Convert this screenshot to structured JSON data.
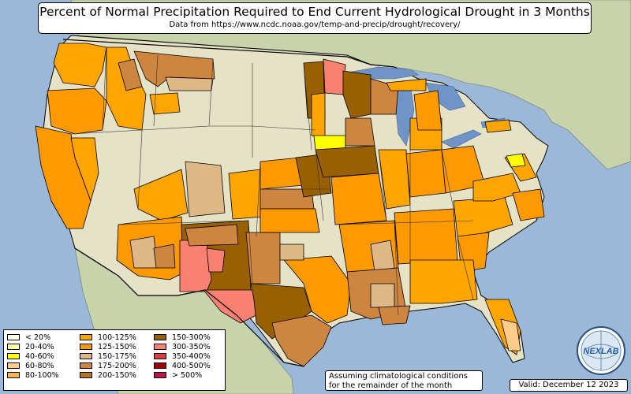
{
  "title": "Percent of Normal Precipitation Required to End Current Hydrological Drought in 3 Months",
  "subtitle": "Data from https://www.ncdc.noaa.gov/temp-and-precip/drought/recovery/",
  "legend": [
    {
      "label": "< 20%",
      "color": "#ffffe0"
    },
    {
      "label": "20-40%",
      "color": "#ffffa8"
    },
    {
      "label": "40-60%",
      "color": "#ffff00"
    },
    {
      "label": "60-80%",
      "color": "#ffcc8a"
    },
    {
      "label": "80-100%",
      "color": "#ffb347"
    },
    {
      "label": "100-125%",
      "color": "#ffa500"
    },
    {
      "label": "125-150%",
      "color": "#ff9900"
    },
    {
      "label": "150-175%",
      "color": "#deb887"
    },
    {
      "label": "175-200%",
      "color": "#cd853f"
    },
    {
      "label": "200-150%",
      "color": "#b8741a"
    },
    {
      "label": "150-300%",
      "color": "#996000"
    },
    {
      "label": "300-350%",
      "color": "#fa8072"
    },
    {
      "label": "350-400%",
      "color": "#dc3c3c"
    },
    {
      "label": "400-500%",
      "color": "#a00000"
    },
    {
      "label": "> 500%",
      "color": "#b4184c"
    }
  ],
  "note_line1": "Assuming climatological conditions",
  "note_line2": "for the remainder of the month",
  "valid": "Valid: December 12 2023",
  "logo_text": "NEXLAB",
  "colors": {
    "ocean": "#9bb8d8",
    "land_us": "#e6e2c6",
    "land_foreign": "#c8d3ac",
    "lakes": "#6f95c8"
  }
}
